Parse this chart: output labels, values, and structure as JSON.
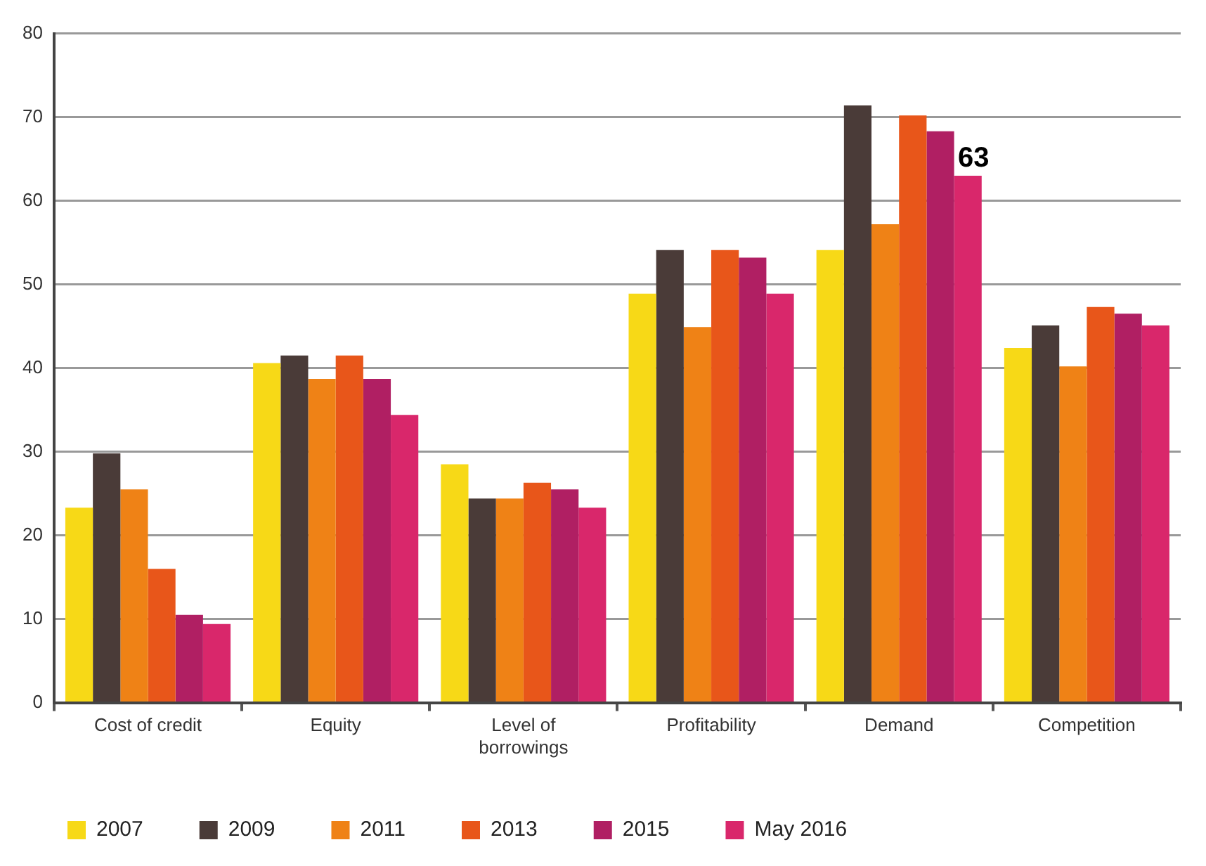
{
  "chart_data": {
    "type": "bar",
    "categories": [
      "Cost of credit",
      "Equity",
      "Level of borrowings",
      "Profitability",
      "Demand",
      "Competition"
    ],
    "series": [
      {
        "name": "2007",
        "color": "#f7d917",
        "values": [
          23.3,
          40.6,
          28.5,
          48.9,
          54.1,
          42.4
        ]
      },
      {
        "name": "2009",
        "color": "#4a3b38",
        "values": [
          29.8,
          41.5,
          24.4,
          54.1,
          71.4,
          45.1
        ]
      },
      {
        "name": "2011",
        "color": "#ef8216",
        "values": [
          25.5,
          38.7,
          24.4,
          44.9,
          57.2,
          40.2
        ]
      },
      {
        "name": "2013",
        "color": "#e8561a",
        "values": [
          16,
          41.5,
          26.3,
          54.1,
          70.2,
          47.3
        ]
      },
      {
        "name": "2015",
        "color": "#b01f63",
        "values": [
          10.5,
          38.7,
          25.5,
          53.2,
          68.3,
          46.5
        ]
      },
      {
        "name": "May 2016",
        "color": "#d9276b",
        "values": [
          9.4,
          34.4,
          23.3,
          48.9,
          63,
          45.1
        ],
        "value_labels": [
          null,
          null,
          null,
          null,
          "63",
          null
        ]
      }
    ],
    "ylim": [
      0,
      80
    ],
    "yticks": [
      0,
      10,
      20,
      30,
      40,
      50,
      60,
      70,
      80
    ],
    "grid": "y",
    "legend": "bottom left"
  }
}
